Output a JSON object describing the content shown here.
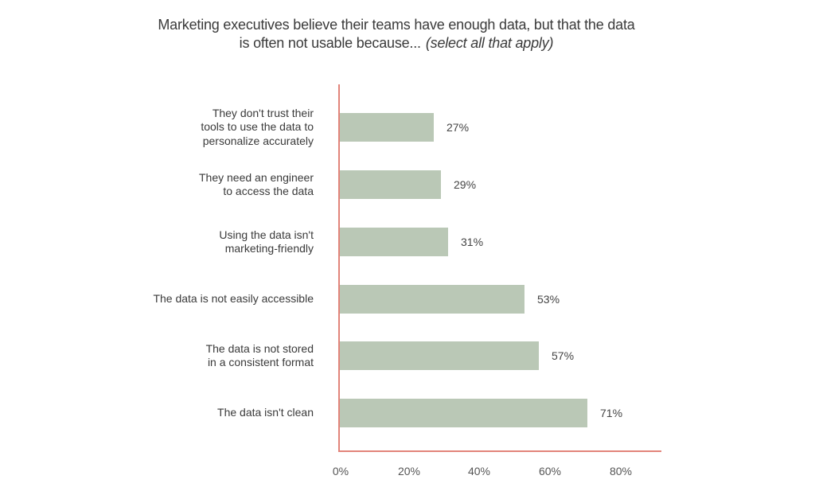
{
  "title": {
    "line1": "Marketing executives believe their teams have enough data, but that the data",
    "line2": "is often not usable because...",
    "note": "(select all that apply)"
  },
  "colors": {
    "bar": "#bac8b6",
    "axis": "#e2847a",
    "text": "#3a3a3a"
  },
  "chart_data": {
    "type": "bar",
    "orientation": "horizontal",
    "title": "Marketing executives believe their teams have enough data, but that the data is often not usable because... (select all that apply)",
    "categories": [
      "They don't trust their tools to use the data to personalize accurately",
      "They need an engineer to access the data",
      "Using the data isn't marketing-friendly",
      "The data is not easily accessible",
      "The data is not stored in a consistent format",
      "The data isn't clean"
    ],
    "values": [
      27,
      29,
      31,
      53,
      57,
      71
    ],
    "value_labels": [
      "27%",
      "29%",
      "31%",
      "53%",
      "57%",
      "71%"
    ],
    "xlabel": "",
    "ylabel": "",
    "xlim": [
      0,
      92
    ],
    "x_ticks": [
      "0%",
      "20%",
      "40%",
      "60%",
      "80%"
    ],
    "grid": false,
    "legend": null
  },
  "rows": [
    {
      "lines": [
        "They don't trust their",
        "tools to use the data to",
        "personalize accurately"
      ],
      "label": "27%"
    },
    {
      "lines": [
        "They need an engineer",
        "to access the data"
      ],
      "label": "29%"
    },
    {
      "lines": [
        "Using the data isn't",
        "marketing-friendly"
      ],
      "label": "31%"
    },
    {
      "lines": [
        "The data is not easily accessible"
      ],
      "label": "53%"
    },
    {
      "lines": [
        "The data is not stored",
        "in a consistent format"
      ],
      "label": "57%"
    },
    {
      "lines": [
        "The data isn't clean"
      ],
      "label": "71%"
    }
  ],
  "ticks": [
    "0%",
    "20%",
    "40%",
    "60%",
    "80%"
  ]
}
